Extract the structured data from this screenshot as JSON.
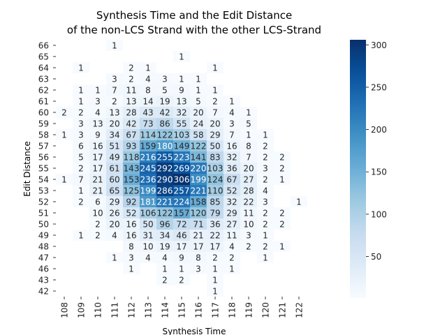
{
  "chart_data": {
    "type": "heatmap",
    "title_lines": [
      "Synthesis Time and the Edit Distance",
      "of the non-LCS Strand with the other LCS-Strand"
    ],
    "xlabel": "Synthesis Time",
    "ylabel": "Edit Distance",
    "x_categories": [
      "108",
      "109",
      "110",
      "111",
      "112",
      "113",
      "114",
      "115",
      "116",
      "117",
      "118",
      "119",
      "120",
      "121",
      "122"
    ],
    "y_categories": [
      "66",
      "65",
      "64",
      "63",
      "62",
      "61",
      "60",
      "59",
      "58",
      "57",
      "56",
      "55",
      "54",
      "53",
      "52",
      "51",
      "50",
      "49",
      "48",
      "47",
      "46",
      "43",
      "42"
    ],
    "cells": [
      [
        null,
        null,
        null,
        1,
        null,
        null,
        null,
        null,
        null,
        null,
        null,
        null,
        null,
        null,
        null
      ],
      [
        null,
        null,
        null,
        null,
        null,
        null,
        null,
        1,
        null,
        null,
        null,
        null,
        null,
        null,
        null
      ],
      [
        null,
        1,
        null,
        null,
        2,
        1,
        null,
        null,
        null,
        1,
        null,
        null,
        null,
        null,
        null
      ],
      [
        null,
        null,
        null,
        3,
        2,
        4,
        3,
        1,
        1,
        null,
        null,
        null,
        null,
        null,
        null
      ],
      [
        null,
        1,
        1,
        7,
        11,
        8,
        5,
        9,
        1,
        1,
        null,
        null,
        null,
        null,
        null
      ],
      [
        null,
        1,
        3,
        2,
        13,
        14,
        19,
        13,
        5,
        2,
        1,
        null,
        null,
        null,
        null
      ],
      [
        2,
        2,
        4,
        13,
        28,
        43,
        42,
        32,
        20,
        7,
        4,
        1,
        null,
        null,
        null
      ],
      [
        null,
        3,
        13,
        20,
        42,
        73,
        86,
        55,
        24,
        20,
        3,
        5,
        null,
        null,
        null
      ],
      [
        1,
        3,
        9,
        34,
        67,
        114,
        122,
        103,
        58,
        29,
        7,
        1,
        1,
        null,
        null
      ],
      [
        null,
        6,
        16,
        51,
        93,
        159,
        180,
        149,
        122,
        50,
        16,
        8,
        2,
        null,
        null
      ],
      [
        null,
        5,
        17,
        49,
        118,
        216,
        255,
        223,
        141,
        83,
        32,
        7,
        2,
        2,
        null
      ],
      [
        null,
        2,
        17,
        61,
        143,
        245,
        292,
        269,
        220,
        103,
        36,
        20,
        3,
        2,
        null
      ],
      [
        1,
        7,
        21,
        60,
        153,
        236,
        290,
        306,
        199,
        124,
        67,
        27,
        2,
        1,
        null
      ],
      [
        null,
        1,
        21,
        65,
        125,
        199,
        286,
        257,
        221,
        110,
        52,
        28,
        4,
        null,
        null
      ],
      [
        null,
        2,
        6,
        29,
        92,
        181,
        221,
        224,
        158,
        85,
        32,
        22,
        3,
        null,
        1
      ],
      [
        null,
        null,
        10,
        26,
        52,
        106,
        122,
        157,
        120,
        79,
        29,
        11,
        2,
        2,
        null
      ],
      [
        null,
        null,
        2,
        20,
        16,
        50,
        96,
        72,
        71,
        36,
        27,
        10,
        2,
        2,
        null
      ],
      [
        null,
        1,
        2,
        4,
        16,
        31,
        34,
        46,
        21,
        22,
        11,
        3,
        1,
        null,
        null
      ],
      [
        null,
        null,
        null,
        null,
        8,
        10,
        19,
        17,
        17,
        17,
        4,
        2,
        2,
        1,
        null
      ],
      [
        null,
        null,
        null,
        1,
        3,
        4,
        4,
        9,
        8,
        2,
        2,
        null,
        1,
        null,
        null
      ],
      [
        null,
        null,
        null,
        null,
        1,
        null,
        1,
        1,
        3,
        1,
        1,
        null,
        null,
        null,
        null
      ],
      [
        null,
        null,
        null,
        null,
        null,
        null,
        2,
        2,
        null,
        1,
        null,
        null,
        null,
        null,
        null
      ],
      [
        null,
        null,
        null,
        null,
        null,
        null,
        null,
        null,
        null,
        1,
        null,
        null,
        null,
        null,
        null
      ]
    ],
    "colorbar_ticks": [
      50,
      100,
      150,
      200,
      250,
      300
    ],
    "vmin": 1,
    "vmax": 306,
    "colormap": "Blues",
    "color_low": "#f7fbff",
    "color_high": "#08306b"
  }
}
